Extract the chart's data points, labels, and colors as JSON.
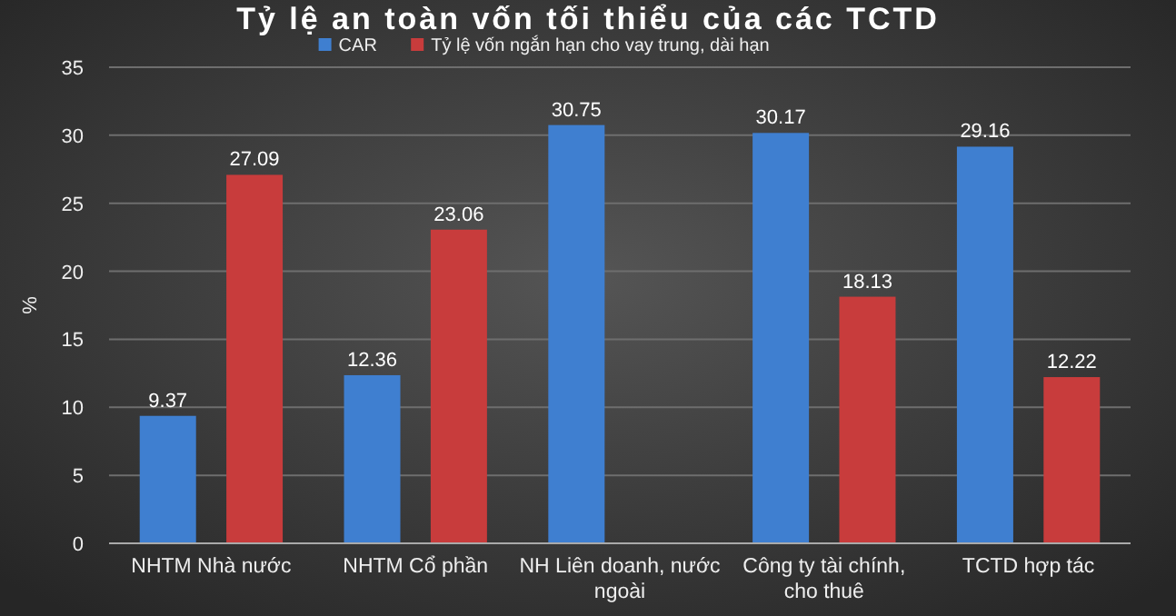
{
  "chart_data": {
    "type": "bar",
    "title": "Tỷ lệ an toàn vốn tối thiểu của các TCTD",
    "ylabel": "%",
    "categories": [
      "NHTM Nhà nước",
      "NHTM Cổ phần",
      "NH Liên doanh, nước ngoài",
      "Công ty tài chính, cho thuê",
      "TCTD hợp tác"
    ],
    "series": [
      {
        "name": "CAR",
        "color": "#3f7fd0",
        "values": [
          9.37,
          12.36,
          30.75,
          30.17,
          29.16
        ]
      },
      {
        "name": "Tỷ lệ vốn ngắn hạn cho vay trung, dài hạn",
        "color": "#c83c3c",
        "values": [
          27.09,
          23.06,
          null,
          18.13,
          12.22
        ]
      }
    ],
    "ylim": [
      0,
      35
    ],
    "yticks": [
      0,
      5,
      10,
      15,
      20,
      25,
      30,
      35
    ],
    "grid": "y",
    "legend": "top",
    "data_labels": true
  }
}
